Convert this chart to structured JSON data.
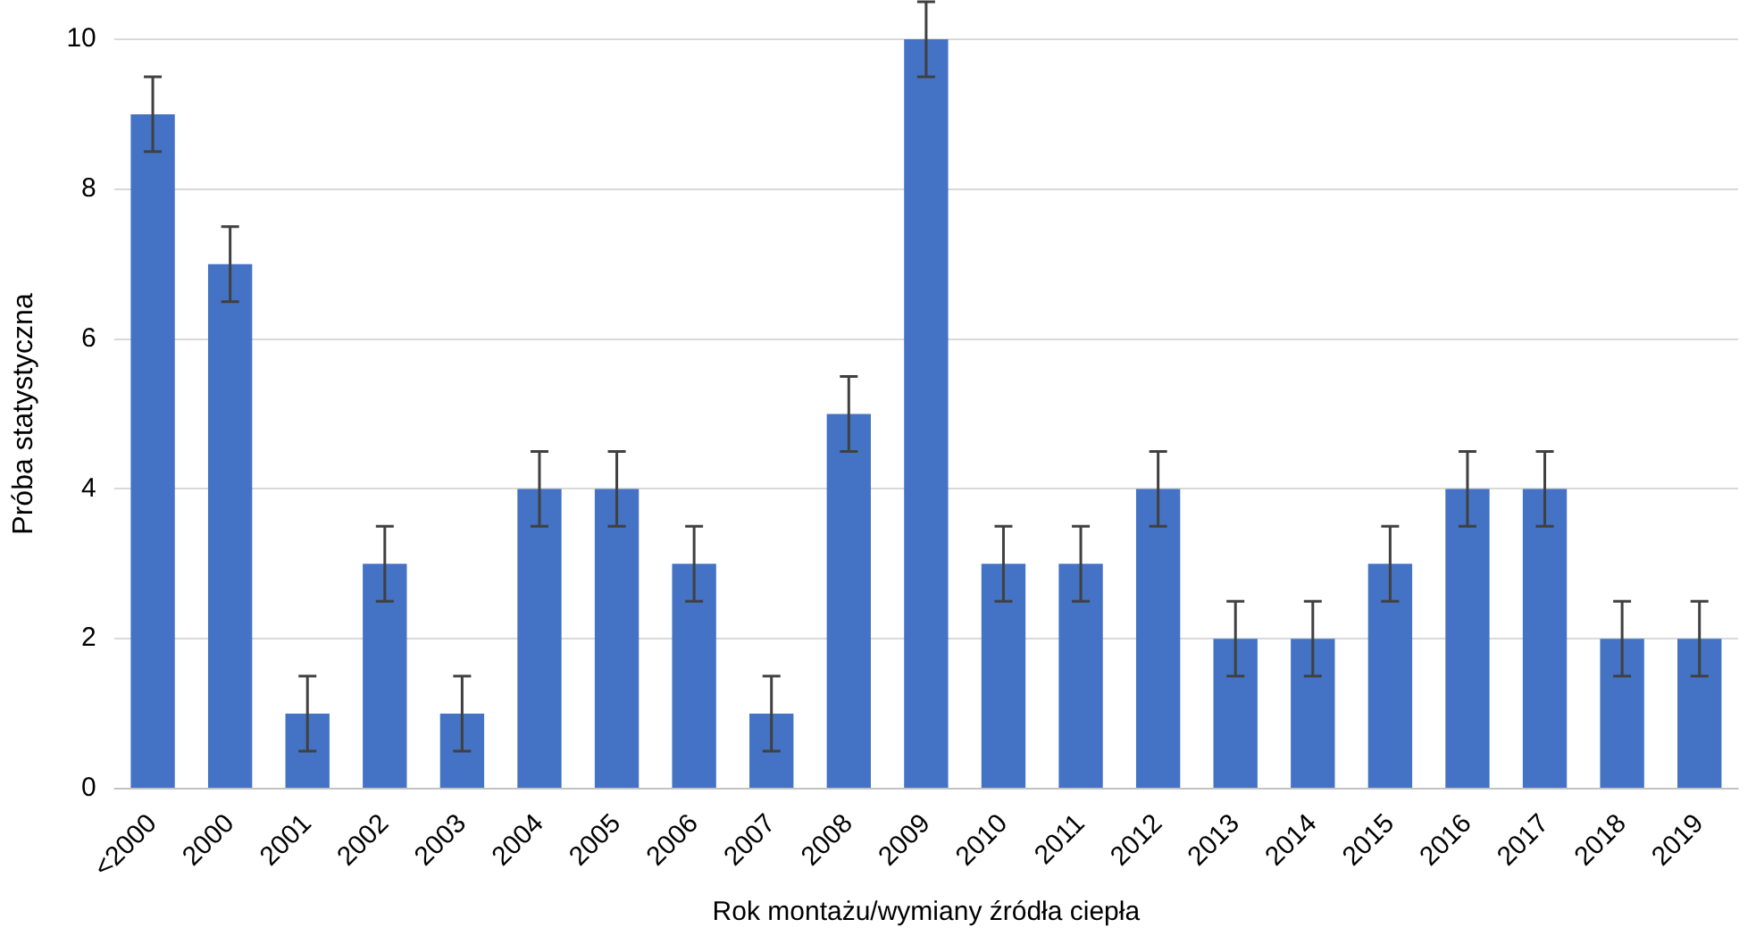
{
  "chart_data": {
    "type": "bar",
    "xlabel": "Rok montażu/wymiany źródła ciepła",
    "ylabel": "Próba statystyczna",
    "categories": [
      "<2000",
      "2000",
      "2001",
      "2002",
      "2003",
      "2004",
      "2005",
      "2006",
      "2007",
      "2008",
      "2009",
      "2010",
      "2011",
      "2012",
      "2013",
      "2014",
      "2015",
      "2016",
      "2017",
      "2018",
      "2019"
    ],
    "values": [
      9,
      7,
      1,
      3,
      1,
      4,
      4,
      3,
      1,
      5,
      10,
      3,
      3,
      4,
      2,
      2,
      3,
      4,
      4,
      2,
      2
    ],
    "errors": [
      0.5,
      0.5,
      0.5,
      0.5,
      0.5,
      0.5,
      0.5,
      0.5,
      0.5,
      0.5,
      0.5,
      0.5,
      0.5,
      0.5,
      0.5,
      0.5,
      0.5,
      0.5,
      0.5,
      0.5,
      0.5
    ],
    "color": "#4472c4",
    "ylim": [
      0,
      10
    ],
    "yticks": [
      0,
      2,
      4,
      6,
      8,
      10
    ],
    "grid": "y",
    "legend": false
  }
}
